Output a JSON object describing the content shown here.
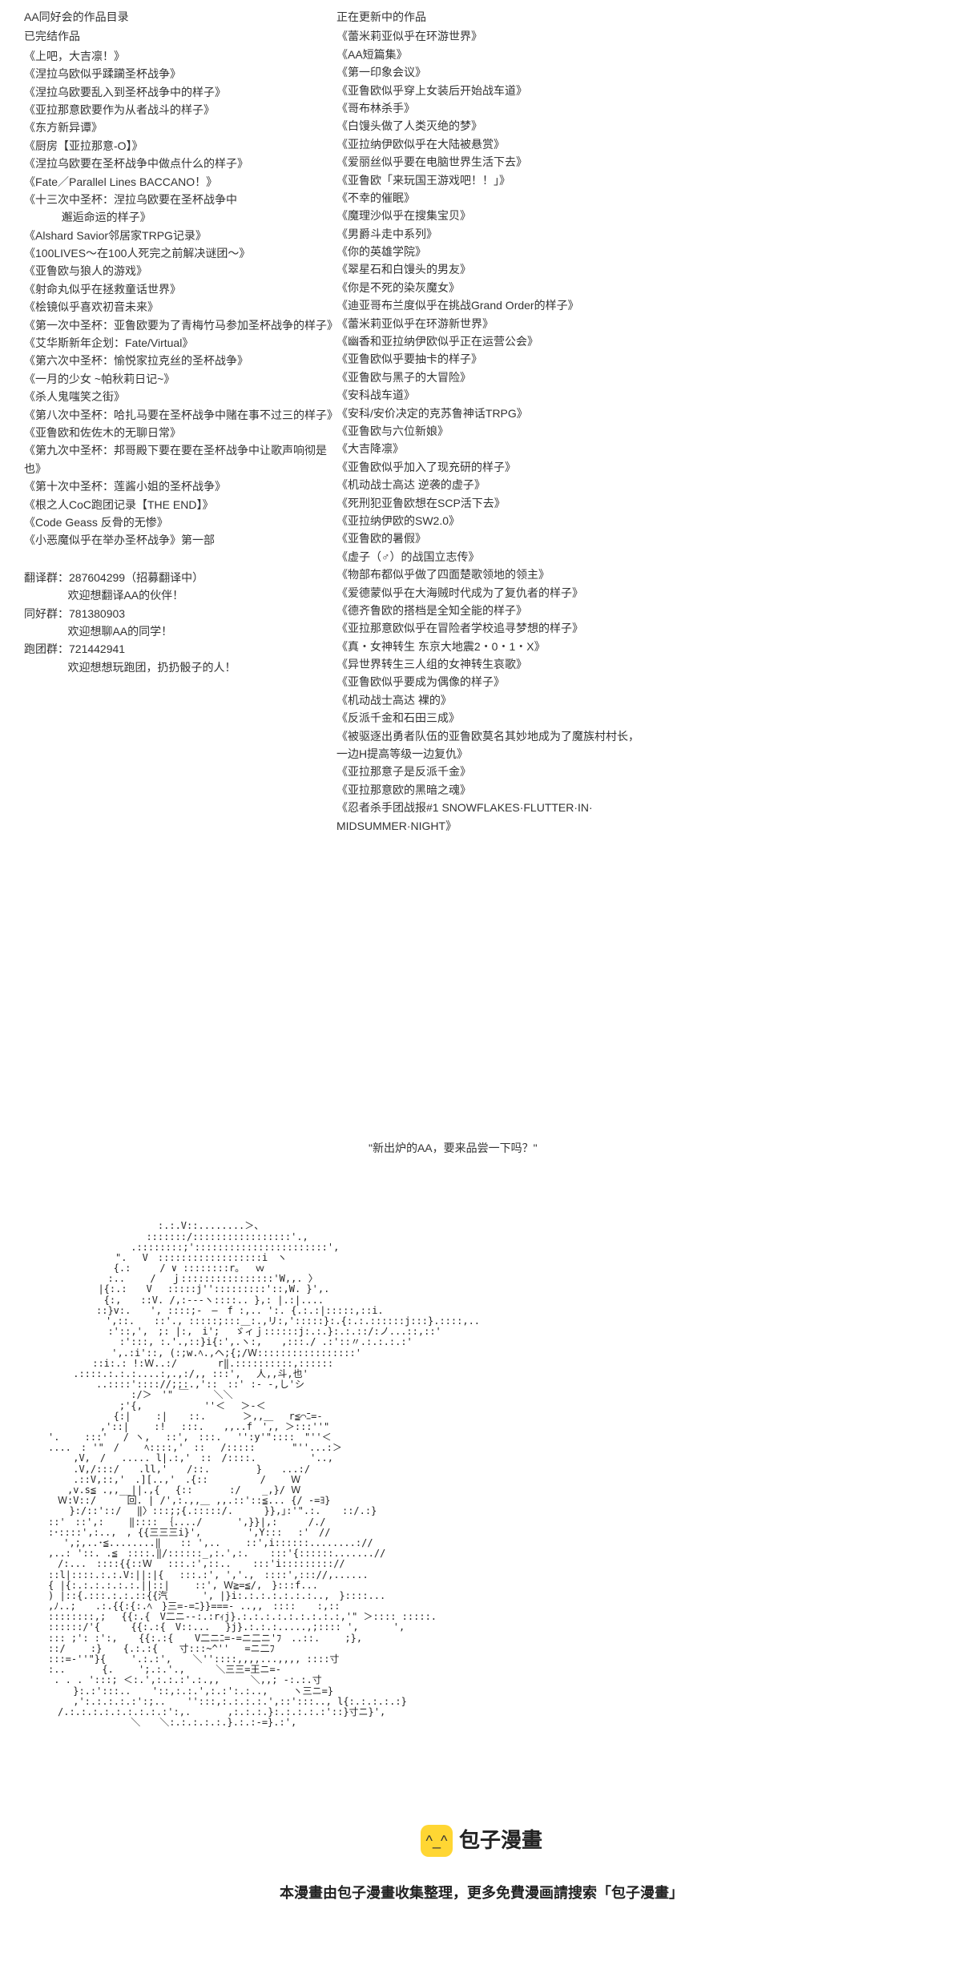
{
  "left": {
    "title": "AA同好会的作品目录",
    "subtitle": "已完结作品",
    "works": [
      "《上吧，大吉凛！》",
      "《涅拉乌欧似乎蹂躏圣杯战争》",
      "《涅拉乌欧要乱入到圣杯战争中的样子》",
      "《亚拉那意欧要作为从者战斗的样子》",
      "《东方新异谭》",
      "《厨房【亚拉那意-O】》",
      "《涅拉乌欧要在圣杯战争中做点什么的样子》",
      "《Fate／Parallel Lines BACCANO！》",
      "《十三次中圣杯：涅拉乌欧要在圣杯战争中\n            邂逅命运的样子》",
      "《Alshard Savior邻居家TRPG记录》",
      "《100LIVES～在100人死完之前解决谜团～》",
      "《亚鲁欧与狼人的游戏》",
      "《射命丸似乎在拯救童话世界》",
      "《桧镜似乎喜欢初音未来》",
      "《第一次中圣杯：亚鲁欧要为了青梅竹马参加圣杯战争的样子》",
      "《艾华斯新年企划：Fate/Virtual》",
      "《第六次中圣杯：愉悦家拉克丝的圣杯战争》",
      "《一月的少女 ~帕秋莉日记~》",
      "《杀人鬼嗤笑之街》",
      "《第八次中圣杯：哈扎马要在圣杯战争中赌在事不过三的样子》",
      "《亚鲁欧和佐佐木的无聊日常》",
      "《第九次中圣杯：邦哥殿下要在要在圣杯战争中让歌声响彻是也》",
      "《第十次中圣杯：莲酱小姐的圣杯战争》",
      "《根之人CoC跑团记录【THE END】》",
      "《Code Geass 反骨的无惨》",
      "《小恶魔似乎在举办圣杯战争》第一部"
    ],
    "groups": [
      "翻译群：287604299（招募翻译中）",
      "              欢迎想翻译AA的伙伴！",
      "同好群：781380903",
      "              欢迎想聊AA的同学！",
      "跑团群：721442941",
      "              欢迎想想玩跑团，扔扔骰子的人！"
    ]
  },
  "right": {
    "title": "正在更新中的作品",
    "works": [
      "《蕾米莉亚似乎在环游世界》",
      "《AA短篇集》",
      "《第一印象会议》",
      "《亚鲁欧似乎穿上女装后开始战车道》",
      "《哥布林杀手》",
      "《白馒头做了人类灭绝的梦》",
      "《亚拉纳伊欧似乎在大陆被悬赏》",
      "《爱丽丝似乎要在电脑世界生活下去》",
      "《亚鲁欧「来玩国王游戏吧！！」》",
      "《不幸的催眠》",
      "《魔理沙似乎在搜集宝贝》",
      "《男爵斗走中系列》",
      "《你的英雄学院》",
      "《翠星石和白馒头的男友》",
      "《你是不死的染灰魔女》",
      "《迪亚哥布兰度似乎在挑战Grand Order的样子》",
      "《蕾米莉亚似乎在环游新世界》",
      "《幽香和亚拉纳伊欧似乎正在运营公会》",
      "《亚鲁欧似乎要抽卡的样子》",
      "《亚鲁欧与黑子的大冒险》",
      "《安科战车道》",
      "《安科/安价决定的克苏鲁神话TRPG》",
      "《亚鲁欧与六位新娘》",
      "《大吉降凛》",
      "《亚鲁欧似乎加入了现充研的样子》",
      "《机动战士高达 逆袭的虚子》",
      "《死刑犯亚鲁欧想在SCP活下去》",
      "《亚拉纳伊欧的SW2.0》",
      "《亚鲁欧的暑假》",
      "《虚子（♂）的战国立志传》",
      "《物部布都似乎做了四面楚歌领地的领主》",
      "《爱德蒙似乎在大海贼时代成为了复仇者的样子》",
      "《德齐鲁欧的搭档是全知全能的样子》",
      "《亚拉那意欧似乎在冒险者学校追寻梦想的样子》",
      "《真・女神转生 东京大地震2・0・1・X》",
      "《异世界转生三人组的女神转生哀歌》",
      "《亚鲁欧似乎要成为偶像的样子》",
      "《机动战士高达 裸的》",
      "《反派千金和石田三成》",
      "《被驱逐出勇者队伍的亚鲁欧莫名其妙地成为了魔族村村长，\n一边H提高等级一边复仇》",
      "《亚拉那意子是反派千金》",
      "《亚拉那意欧的黑暗之魂》",
      "《忍者杀手团战报#1 SNOWFLAKES·FLUTTER·IN·\nMIDSUMMER·NIGHT》"
    ],
    "quote": "\"新出炉的AA，要来品尝一下吗？\""
  },
  "ascii": "　　　　　 　 　 　 　:.:.V::........＞、\n　　　　　　　　 　 :::::::/:::::::::::::::::'.,\n　　　　　　　　 .::::::::;':::::::::::::::::::::::',\n　　　　　　　\".　 V　::::::::::::::::::i　ヽ\n　　　 　 　 {.:　　　/ ∨ ::::::::r｡　 ｗ\n　　　　 　 :..　　 /　 ｊ::::::::::::::::'W,,. 〉\n　　　 　 |{:.:　　V　 :::::j'':::::::::'::,W. }',.\n　　 　 　 {:,　　::V. /,:-‐-ヽ::::.. },: |.:|....\n　　　　　::}v:.　　', ::::;-　―　f :,.. ':. {.:.:|:::::,::i.\n　　　　　　',::.　　::'., :::::;:::＿:.,リ:,':::::}:.{:.:.::::::j:::}.::::,..\n　　　　 　 :'::,',　;: |:,　i';　 ゞィｊ::::::j:.:.}:.:.::/:ノ...::,::'\n　　 　 　 　 :':::, :.'.,::}i{:',.ヽ:,　　,:::./ .:'::〃.:.:.:.:'\n　　　　　　 ',.:i'::, (:;w.ﾍ.,ヘ;{;/Ｗ:::::::::::::::::'\n　　　　 ::i:.: !:Ｗ..:/　　 　 r‖.::::::::::,::::::\n　　 .::::.:.:.:....:,.,:/,, :::',　 人,,斗,也'\n　　　　　..::::':::://;;:.,'::　::' :- -,し'シ\n　　　　　　　　 :/＞　'\" ￣　　 ＼＼\n　　 　 　 　 ;'{,　 　 　 　 ''＜　 ＞-＜\n　　　 　 　 {:|　　 :| 　 ::. 　 　 ＞,,＿　 r≦⌒ﾆ=-\n 　 　 　 ,'::|　　 :!　 :::.　　,,..f　',, ＞:::''\"\n'.　　 :::'　 / ヽ,　 ::',　:::.　 '':y'\"::::　\"''＜\n....　: '\"　/　　 ﾍ::::,'　::　 /::::: 　 　 \"''...:＞\n　　 ,V,　/　 ..... l|.:,'　::　/::::.　　　　　 '..,\n　　 .V,/:::/　　.ll,'　　/::.　 　 　 }　　...:/\n　　 .::V,::,'　.][..,'　.{:: 　 　 　 /　　 Ｗ\n　　,v.s≦ .,,__||.,{　 {:: 　 　 :/ 　 _,}/ Ｗ\n　Ｗ:V::/　 　 回. | /',:.,,＿ ,,.::'::≦... {/ -=ﾖ}\n 　 }:/::'::/　 ‖〉:::;;{.:::::/.　 　 }},｣:'\".:. 　 ::/.:}\n::'　::',:　　 ‖:::: ｛..../　　　 ',}}|,:　 　 /./\n:･::::',:..,　, {{三三三i}',　 　 　 ',Y:::　 :'　//\n　 ',;,..･≦........‖　　:: ',..　　 ::',i::::::........://\n,..: '::. .≦　::::.‖/::::::_,:.',:. 　 :::'{::::::.......//\n　/:...　::::{{::Ｗ　 :::.:',::.. 　 :::'i::::::::://\n::l|::::.:.:.V:||:|{　 :::.:', ','.,　::::',::://,......\n{ |{:.:.:.:.:.:.||::|　　 ::', Ｗ≧=≦/,　}:::f...\n) |::{.:::.:.:.::{{汽　　　 ', |}i:.:.:.:.:.:.:..,　}::::...\n,ﾉ..;　　.:.{{:{:.ﾍ　}三=-=ﾆ}}===- ..,,　:::: 　 :,::\n::::::::,;　 {{:.{　V二ニ-‐:.:rｨj}.:.:.:.:.:.:.:.:.:,'\" ＞:::: :::::.\n::::::/'{　 　 {{:.:{　V::...　 }j}.:.:.:.....,;:::: ',　　　 ',\n::: ;': :':, 　 {{:.:{ 　 V二ニﾆ=-=ニ二ニ'ﾌ　..::.　　 ;},\n::/　　 :} 　 {.:.:{ 　 寸:::~^'' 　=ニ二ﾌ\n:::=-''\"}{　　 '.:.:', 　 ＼''::::,,,,...,,,, ::::寸\n:.. 　 　 {.　　 ';.:.'.,　 　 ＼三三=王ニ=-\n . . . ':::; ＜:.',:.:.:'.:.,,　 　 ＼,,; -:.:.寸\n　　 }:.:':::.. 　 '::,:.:.',:.:':.:..,　　 ヽ三ニ=}\n　　 ,':.:.:.:.:':;.. 　 '':::,:.:.:.:.',::':::.., l{:.:.:.:.:}\n　/.:.:.:.:.:.:.:.:.:':,. 　 　 ,:.:.:.}:.:.:.:.:'::}寸ニ}',\n　　　　　　　　 ＼　　＼:.:.:.:.:.}.:.:-=}.:',\n",
  "footer": {
    "logoText": "包子漫畫",
    "logoIcon": "^_^",
    "slogan": "本漫畫由包子漫畫收集整理，更多免費漫画請搜索「包子漫畫」"
  }
}
